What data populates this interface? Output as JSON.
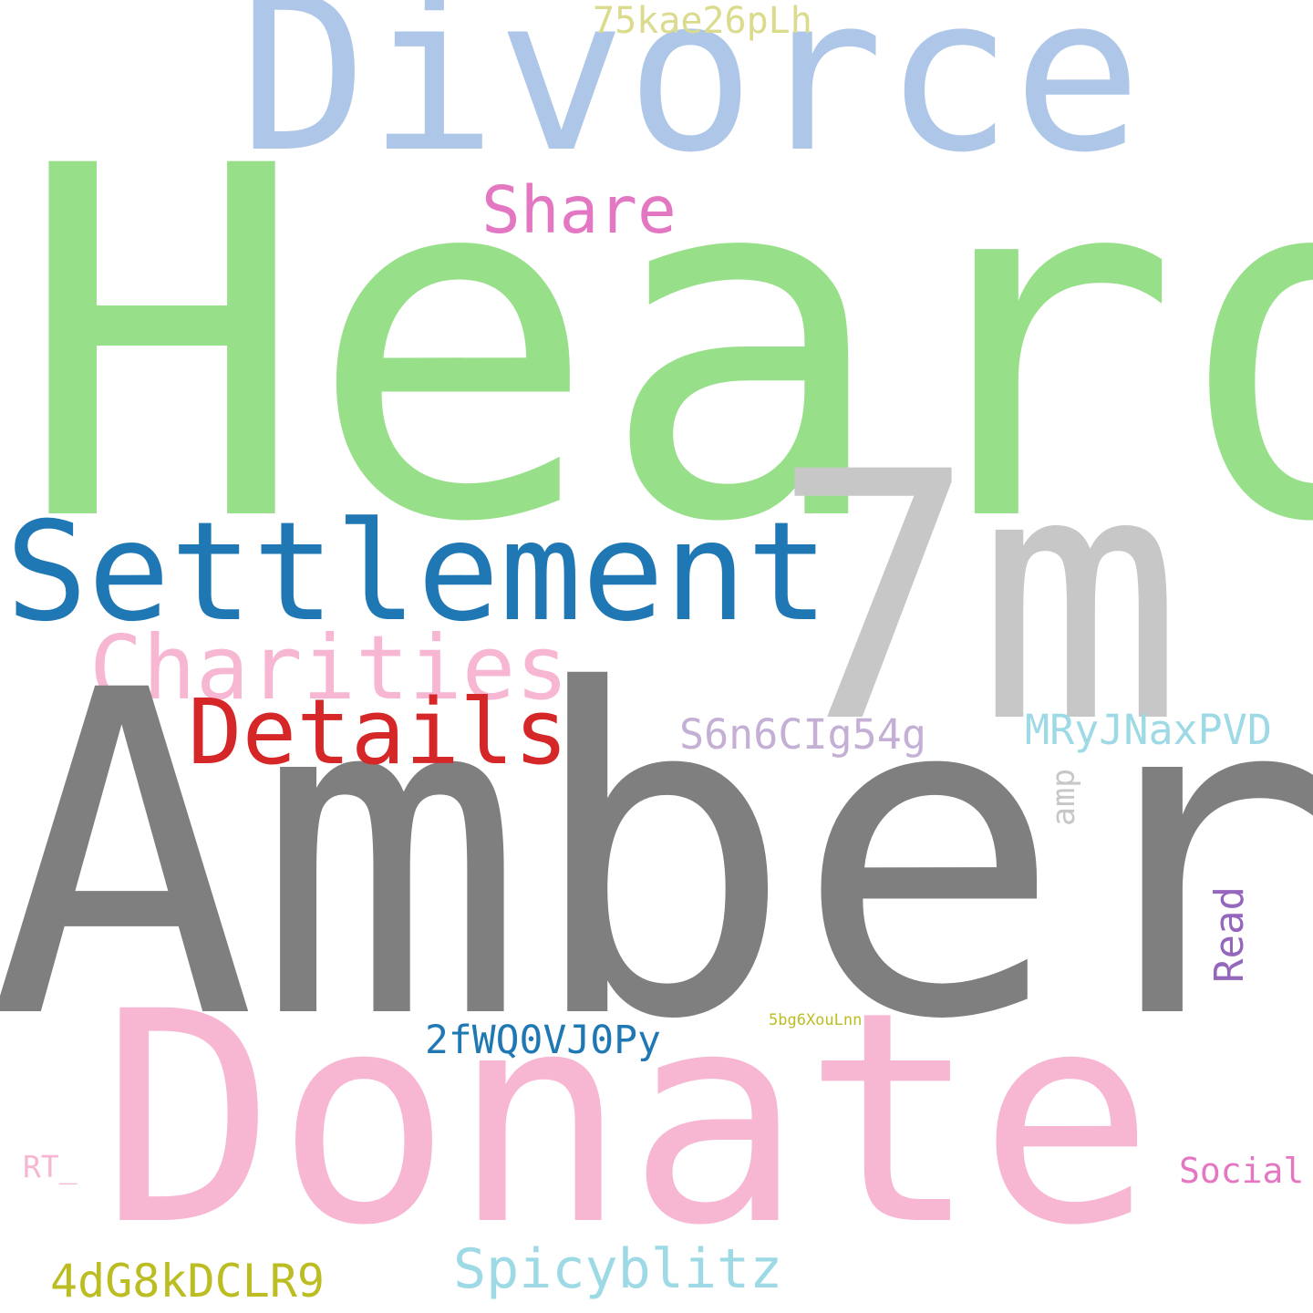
{
  "words": {
    "heard": {
      "text": "Heard",
      "color": "#98df8a"
    },
    "amber": {
      "text": "Amber",
      "color": "#7f7f7f"
    },
    "donate": {
      "text": "Donate",
      "color": "#f7b6d2"
    },
    "divorce": {
      "text": "Divorce",
      "color": "#aec7e8"
    },
    "seven_m": {
      "text": "7m",
      "color": "#c7c7c7"
    },
    "settlement": {
      "text": "Settlement",
      "color": "#1f77b4"
    },
    "charities": {
      "text": "Charities",
      "color": "#f7b6d2"
    },
    "details": {
      "text": "Details",
      "color": "#d62728"
    },
    "share": {
      "text": "Share",
      "color": "#e377c2"
    },
    "code_75kae": {
      "text": "75kae26pLh",
      "color": "#dbdb8d"
    },
    "code_s6n6": {
      "text": "S6n6CIg54g",
      "color": "#c5b0d5"
    },
    "code_mryj": {
      "text": "MRyJNaxPVD",
      "color": "#9edae5"
    },
    "code_2fwq": {
      "text": "2fWQ0VJ0Py",
      "color": "#1f77b4"
    },
    "spicyblitz": {
      "text": "Spicyblitz",
      "color": "#9edae5"
    },
    "code_4dg8": {
      "text": "4dG8kDCLR9",
      "color": "#bcbd22"
    },
    "social": {
      "text": "Social",
      "color": "#e377c2"
    },
    "rt": {
      "text": "RT_",
      "color": "#f7b6d2"
    },
    "code_5bg6": {
      "text": "5bg6XouLnn",
      "color": "#bcbd22"
    },
    "amp": {
      "text": "amp",
      "color": "#c7c7c7"
    },
    "read": {
      "text": "Read",
      "color": "#9467bd"
    }
  }
}
